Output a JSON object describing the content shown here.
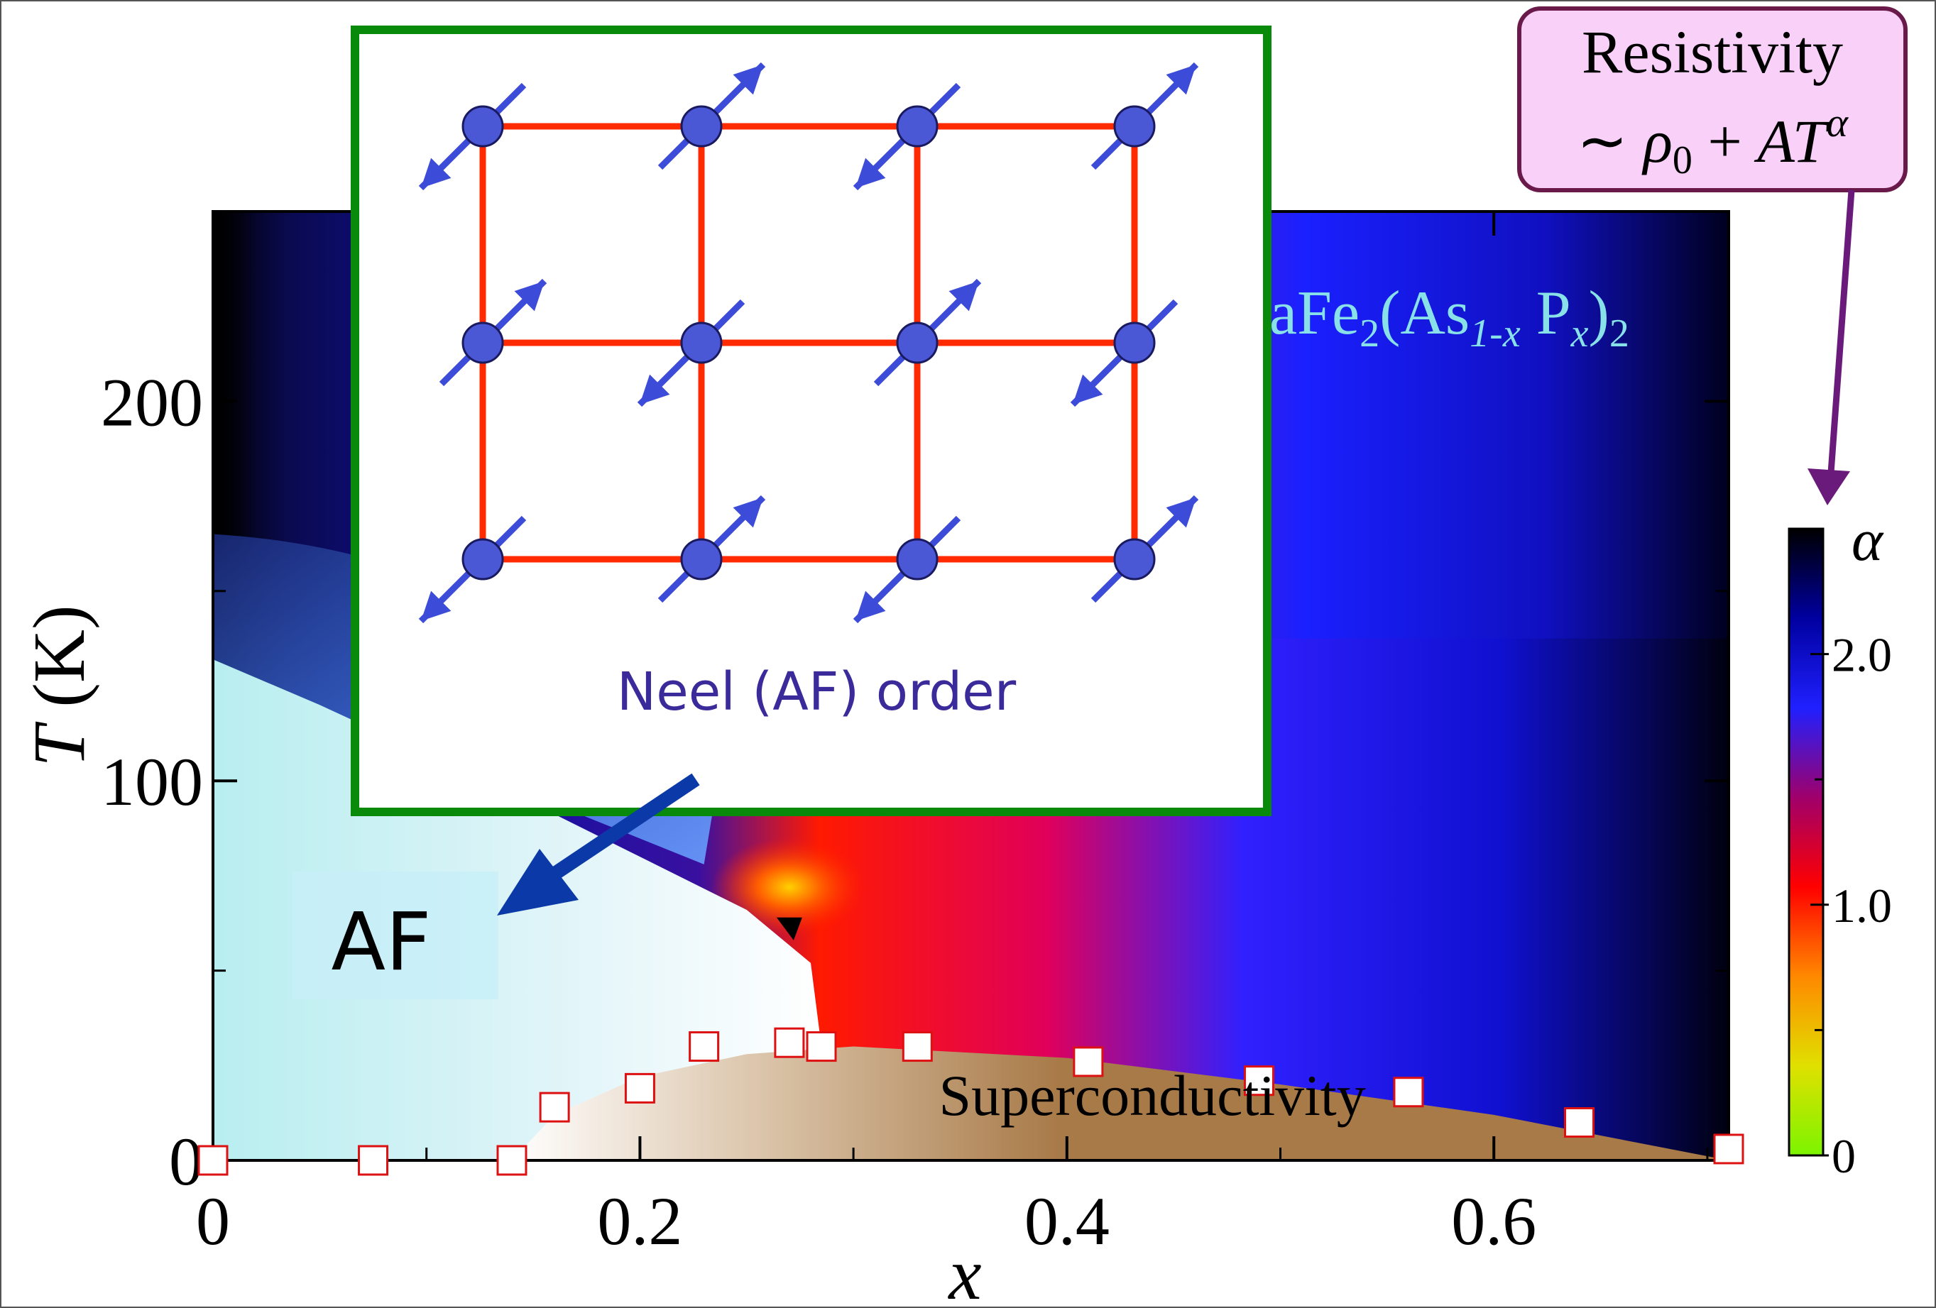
{
  "chart_data": {
    "type": "heatmap",
    "title": "BaFe₂(As₁₋ₓPₓ)₂",
    "title_parts": {
      "lead": "aFe",
      "sub1": "2",
      "mid": "(As",
      "sub2": "1-x",
      "mid2": " P",
      "sub3": "x",
      "tail": ")",
      "sub4": "2"
    },
    "xlabel": "x",
    "ylabel": {
      "symbol": "T",
      "unit": "(K)"
    },
    "xlim": [
      0,
      0.71
    ],
    "ylim": [
      0,
      250
    ],
    "x_ticks": [
      "0",
      "0.2",
      "0.4",
      "0.6"
    ],
    "x_tick_values": [
      0,
      0.2,
      0.4,
      0.6
    ],
    "y_ticks": [
      "0",
      "100",
      "200"
    ],
    "y_tick_values": [
      0,
      100,
      200
    ],
    "regions": {
      "af_label": "AF",
      "sc_label": "Superconductivity"
    },
    "colorbar": {
      "label": "α",
      "ticks": [
        "0",
        "1.0",
        "2.0"
      ],
      "tick_values": [
        0,
        1.0,
        2.0
      ],
      "range": [
        0,
        2.5
      ],
      "colors": [
        "#7cf400",
        "#e0e000",
        "#ff8800",
        "#ff0000",
        "#a0006a",
        "#2020ff",
        "#0000a0",
        "#000000"
      ]
    },
    "af_boundary": [
      [
        0,
        132
      ],
      [
        0.05,
        120
      ],
      [
        0.1,
        107
      ],
      [
        0.15,
        94
      ],
      [
        0.2,
        80
      ],
      [
        0.25,
        66
      ],
      [
        0.28,
        52
      ],
      [
        0.285,
        30
      ]
    ],
    "sc_dome": [
      [
        0.14,
        0
      ],
      [
        0.16,
        12
      ],
      [
        0.2,
        22
      ],
      [
        0.25,
        28
      ],
      [
        0.3,
        30
      ],
      [
        0.4,
        27
      ],
      [
        0.5,
        20
      ],
      [
        0.6,
        12
      ],
      [
        0.71,
        0
      ]
    ],
    "series": [
      {
        "marker": "open-square",
        "x": [
          0,
          0.075,
          0.14,
          0.16,
          0.2,
          0.23,
          0.27,
          0.285,
          0.33,
          0.41,
          0.49,
          0.56,
          0.64,
          0.71
        ],
        "y": [
          0,
          0,
          0,
          14,
          19,
          30,
          31,
          30,
          30,
          26,
          21,
          18,
          10,
          3
        ]
      }
    ],
    "inset": {
      "caption": "Neel (AF) order",
      "border_color": "#0a8a0a",
      "bond_color": "#ff2a00",
      "spin_color": "#3c4cd8"
    },
    "annotation": {
      "line1": "Resistivity",
      "line2_parts": {
        "sim": "∼ ",
        "rho": "ρ",
        "rho_sub": "0",
        "plus": " + ",
        "AT": "AT",
        "alpha": "α"
      }
    }
  }
}
